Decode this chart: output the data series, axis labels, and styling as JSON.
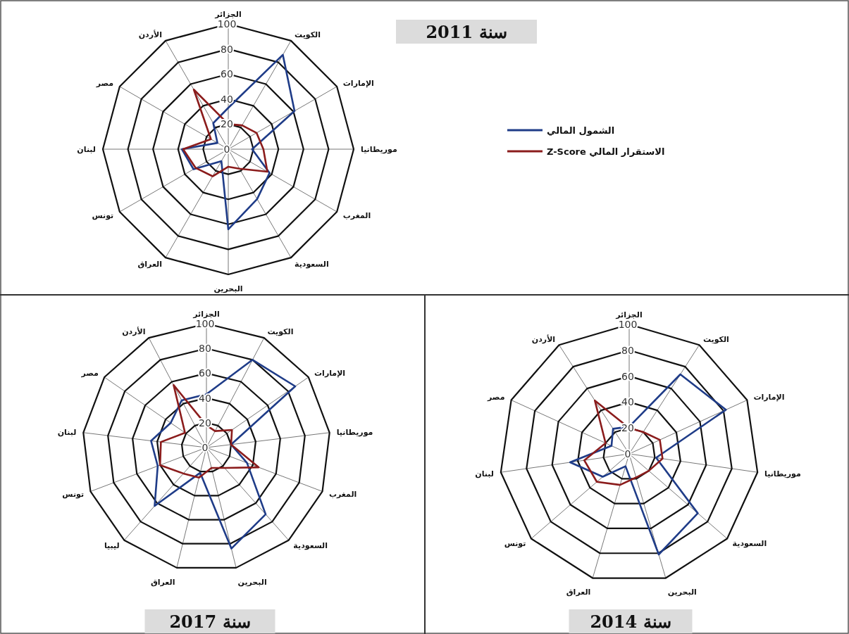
{
  "chart_data": [
    {
      "type": "radar",
      "title": "سنة 2011",
      "categories": [
        "الجزائر",
        "الكويت",
        "الإمارات",
        "موريطانيا",
        "المغرب",
        "السعودية",
        "البحرين",
        "العراق",
        "تونس",
        "لبنان",
        "مصر",
        "الأردن"
      ],
      "ylim": [
        0,
        100
      ],
      "yticks": [
        0,
        20,
        40,
        60,
        80,
        100
      ],
      "legend": "right",
      "grid": true,
      "series": [
        {
          "name": "الشمول المالي",
          "color": "#1f3c88",
          "values": [
            33,
            87,
            61,
            19,
            38,
            46,
            64,
            11,
            32,
            37,
            10,
            24
          ]
        },
        {
          "name": "الاستقرار المالي Z-Score",
          "color": "#8b1c1c",
          "values": [
            20,
            22,
            26,
            28,
            36,
            18,
            14,
            25,
            30,
            36,
            16,
            55
          ]
        }
      ]
    },
    {
      "type": "radar",
      "title": "سنة 2017",
      "categories": [
        "الجزائر",
        "الكويت",
        "الإمارات",
        "موريطانيا",
        "المغرب",
        "السعودية",
        "البحرين",
        "العراق",
        "ليبيا",
        "تونس",
        "لبنان",
        "مصر",
        "الأردن"
      ],
      "ylim": [
        0,
        100
      ],
      "yticks": [
        0,
        20,
        40,
        60,
        80,
        100
      ],
      "grid": true,
      "series": [
        {
          "color": "#1f3c88",
          "values": [
            43,
            80,
            87,
            20,
            35,
            72,
            84,
            21,
            63,
            42,
            45,
            35,
            43
          ]
        },
        {
          "color": "#8b1c1c",
          "values": [
            18,
            15,
            25,
            20,
            45,
            22,
            17,
            25,
            28,
            40,
            37,
            21,
            57
          ]
        }
      ]
    },
    {
      "type": "radar",
      "title": "سنة 2014",
      "categories": [
        "الجزائر",
        "الكويت",
        "الإمارات",
        "موريطانيا",
        "السعودية",
        "البحرين",
        "العراق",
        "تونس",
        "لبنان",
        "مصر",
        "الأردن"
      ],
      "ylim": [
        0,
        100
      ],
      "yticks": [
        0,
        20,
        40,
        60,
        80,
        100
      ],
      "grid": true,
      "series": [
        {
          "color": "#1f3c88",
          "values": [
            21,
            73,
            82,
            21,
            70,
            81,
            10,
            27,
            46,
            15,
            23
          ]
        },
        {
          "color": "#8b1c1c",
          "values": [
            20,
            20,
            26,
            26,
            20,
            19,
            25,
            33,
            35,
            20,
            49
          ]
        }
      ]
    }
  ]
}
